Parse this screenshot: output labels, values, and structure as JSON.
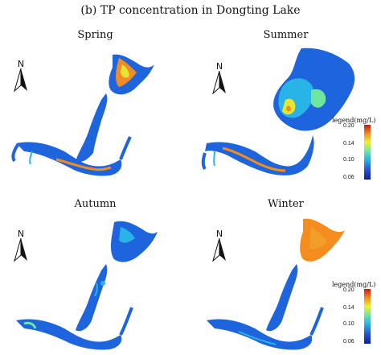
{
  "figure": {
    "title": "(b)  TP concentration in Dongting Lake",
    "north_letter": "N",
    "panels": [
      {
        "season": "Spring"
      },
      {
        "season": "Summer"
      },
      {
        "season": "Autumn"
      },
      {
        "season": "Winter"
      }
    ],
    "legend": {
      "title": "legend(mg/L)",
      "ticks": [
        "0.20",
        "0.14",
        "0.10",
        "0.06"
      ],
      "range_mg_per_L": [
        0.06,
        0.2
      ],
      "colormap": [
        "#0a1ea0",
        "#2a52d4",
        "#28b4e6",
        "#6ee6a0",
        "#f0f032",
        "#f58c1e",
        "#d21414"
      ]
    }
  }
}
